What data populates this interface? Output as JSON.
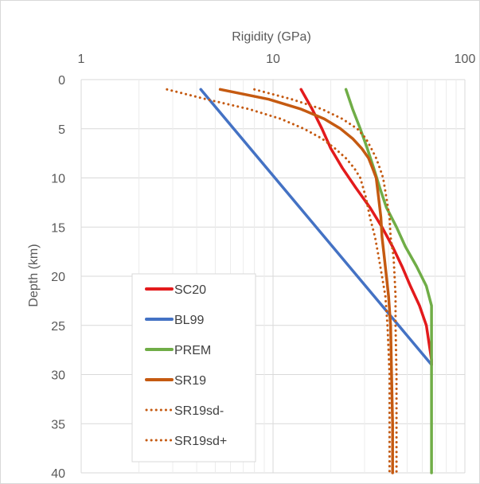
{
  "chart_data": {
    "type": "line",
    "title": "",
    "xlabel": "Rigidity (GPa)",
    "ylabel": "Depth (km)",
    "x_scale": "log",
    "xlim": [
      1,
      100
    ],
    "ylim": [
      0,
      40
    ],
    "y_inverted": true,
    "x_axis_position": "top",
    "x_ticks": [
      "1",
      "10",
      "100"
    ],
    "y_ticks": [
      "0",
      "5",
      "10",
      "15",
      "20",
      "25",
      "30",
      "35",
      "40"
    ],
    "grid": true,
    "legend_position": "bottom-left",
    "series": [
      {
        "name": "SC20",
        "color": "#e31a1c",
        "style": "solid",
        "x": [
          14,
          16,
          18,
          20,
          23,
          27,
          32,
          37,
          42,
          47,
          52,
          58,
          63,
          67,
          67
        ],
        "y": [
          1,
          3,
          5,
          7,
          9,
          11,
          13,
          15,
          17,
          19,
          21,
          23,
          25,
          28.5,
          29
        ]
      },
      {
        "name": "BL99",
        "color": "#4472c4",
        "style": "solid",
        "x": [
          4.2,
          67
        ],
        "y": [
          1,
          29
        ]
      },
      {
        "name": "PREM",
        "color": "#70ad47",
        "style": "solid",
        "x": [
          24,
          26,
          28.5,
          31,
          33.5,
          36,
          39,
          44,
          49,
          56,
          63,
          67,
          67,
          67
        ],
        "y": [
          1,
          3,
          5,
          7,
          9,
          11,
          13,
          15,
          17,
          19,
          21,
          23,
          24,
          40
        ]
      },
      {
        "name": "SR19",
        "color": "#c55a11",
        "style": "solid",
        "x": [
          5.3,
          9.5,
          14,
          18.5,
          22.5,
          26,
          29,
          31.5,
          33,
          34.5,
          35.5,
          36.5,
          37,
          38,
          39,
          40,
          41,
          41.5,
          42,
          42
        ],
        "y": [
          1,
          2,
          3,
          4,
          5,
          6,
          7,
          8,
          9,
          10,
          12,
          14,
          16,
          18,
          20,
          22,
          25,
          30,
          35,
          40
        ]
      },
      {
        "name": "SR19sd-",
        "color": "#c55a11",
        "style": "dotted",
        "x": [
          2.8,
          4.5,
          7.5,
          11,
          14.5,
          18,
          21,
          24,
          26.5,
          28.5,
          30.5,
          32,
          34,
          35.5,
          37,
          38.5,
          39.5,
          40.5,
          40.5,
          40.5
        ],
        "y": [
          1,
          2,
          3,
          4,
          5,
          6,
          7,
          8,
          9,
          10,
          12,
          14,
          16,
          18,
          20,
          22,
          25,
          30,
          35,
          40
        ]
      },
      {
        "name": "SR19sd+",
        "color": "#c55a11",
        "style": "dotted",
        "x": [
          8,
          12.5,
          18,
          23,
          27.5,
          30.5,
          32.5,
          34.5,
          36,
          37.5,
          39,
          40.5,
          41,
          42.5,
          43,
          43.5,
          43.5,
          44,
          44,
          44
        ],
        "y": [
          1,
          2,
          3,
          4,
          5,
          6,
          7,
          8,
          9,
          10,
          12,
          14,
          16,
          18,
          20,
          22,
          25,
          30,
          35,
          40
        ]
      }
    ]
  }
}
